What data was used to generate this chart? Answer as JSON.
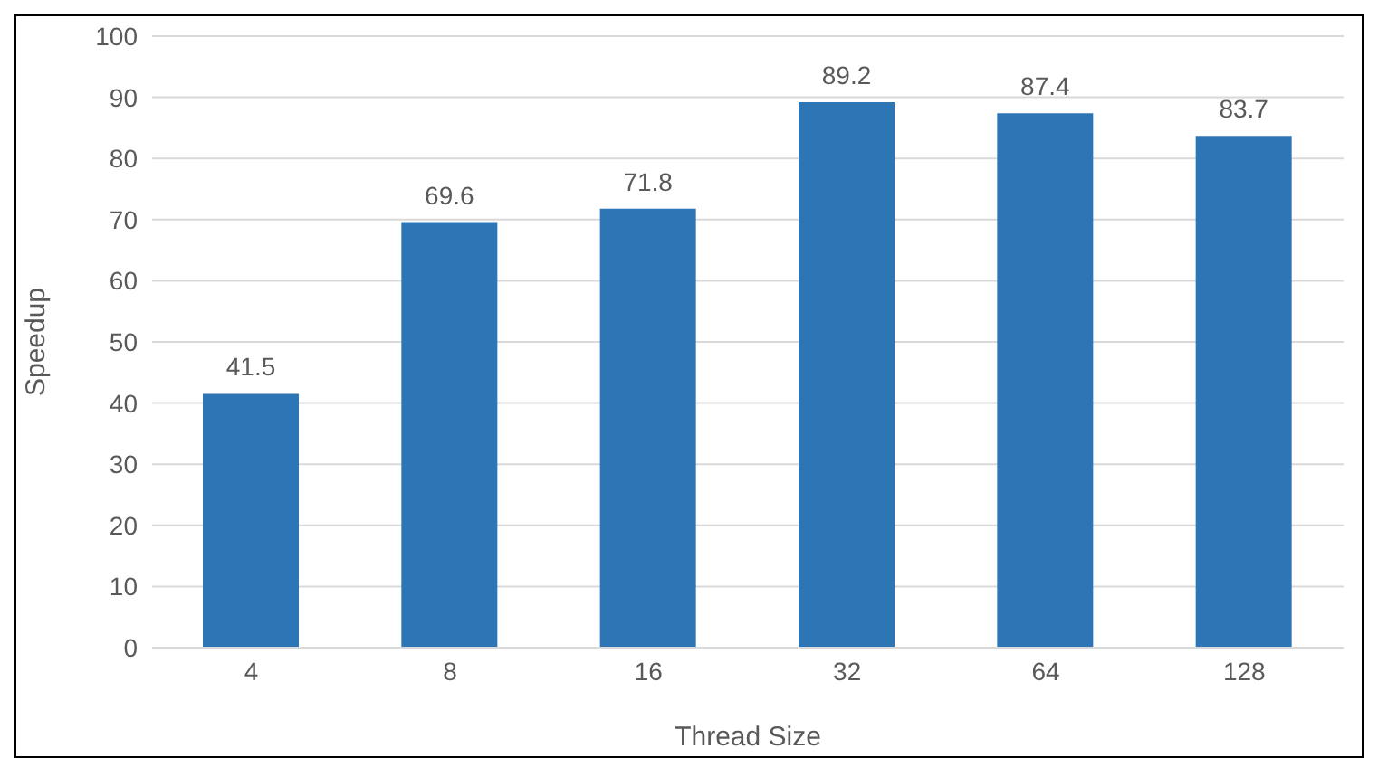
{
  "chart_data": {
    "type": "bar",
    "xlabel": "Thread Size",
    "ylabel": "Speedup",
    "categories": [
      "4",
      "8",
      "16",
      "32",
      "64",
      "128"
    ],
    "values": [
      41.5,
      69.6,
      71.8,
      89.2,
      87.4,
      83.7
    ],
    "color": "#2e75b6",
    "ylim": [
      0,
      100
    ],
    "yticks": [
      0,
      10,
      20,
      30,
      40,
      50,
      60,
      70,
      80,
      90,
      100
    ],
    "grid": "y",
    "data_labels": true
  }
}
